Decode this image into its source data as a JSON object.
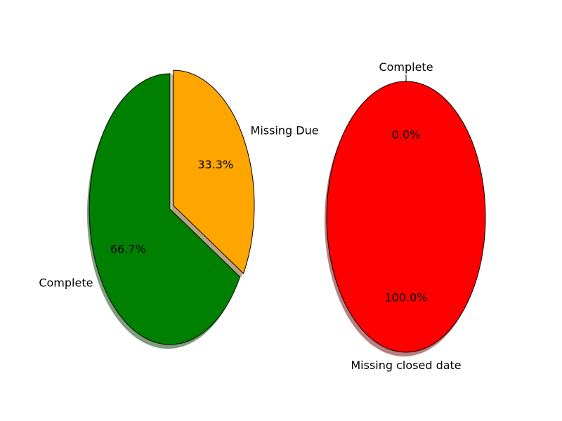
{
  "chart_data": [
    {
      "type": "pie",
      "title": "",
      "slices": [
        {
          "label": "Complete",
          "value": 2,
          "percent_label": "66.7%",
          "color": "#008000",
          "exploded": false
        },
        {
          "label": "Missing Due",
          "value": 1,
          "percent_label": "33.3%",
          "color": "#ffa500",
          "exploded": true
        }
      ],
      "start_angle_deg": 90,
      "direction": "counterclockwise",
      "shadow": true,
      "edge_color": "#000000"
    },
    {
      "type": "pie",
      "title": "",
      "slices": [
        {
          "label": "Complete",
          "value": 0,
          "percent_label": "0.0%",
          "color": "#008000",
          "exploded": false
        },
        {
          "label": "Missing closed date",
          "value": 1,
          "percent_label": "100.0%",
          "color": "#ff0000",
          "exploded": false
        }
      ],
      "start_angle_deg": 90,
      "direction": "counterclockwise",
      "shadow": true,
      "edge_color": "#000000"
    }
  ]
}
